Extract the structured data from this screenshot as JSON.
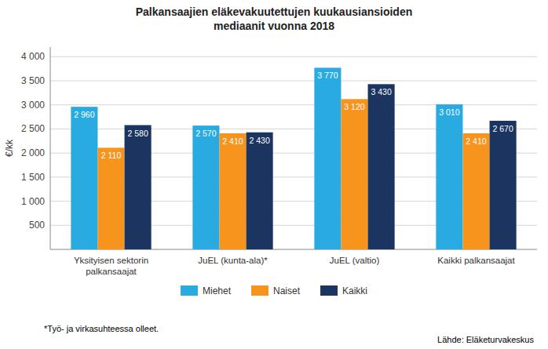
{
  "chart_data": {
    "type": "bar",
    "title": "Palkansaajien eläkevakuutettujen kuukausiansioiden\nmediaanit vuonna 2018",
    "categories": [
      "Yksityisen sektorin\npalkansaajat",
      "JuEL (kunta-ala)*",
      "JuEL (valtio)",
      "Kaikki palkansaajat"
    ],
    "series": [
      {
        "name": "Miehet",
        "color": "#29ABE2",
        "values": [
          2960,
          2570,
          3770,
          3010
        ],
        "value_labels": [
          "2 960",
          "2 570",
          "3 770",
          "3 010"
        ]
      },
      {
        "name": "Naiset",
        "color": "#F7941D",
        "values": [
          2110,
          2410,
          3120,
          2410
        ],
        "value_labels": [
          "2 110",
          "2 410",
          "3 120",
          "2 410"
        ]
      },
      {
        "name": "Kaikki",
        "color": "#1B3560",
        "values": [
          2580,
          2430,
          3430,
          2670
        ],
        "value_labels": [
          "2 580",
          "2 430",
          "3 430",
          "2 670"
        ]
      }
    ],
    "ylabel": "€/kk",
    "ylim": [
      0,
      4200
    ],
    "yticks": [
      500,
      {
        "value": 1000,
        "label": "1 000"
      },
      {
        "value": 1500,
        "label": "1 500"
      },
      {
        "value": 2000,
        "label": "2 000"
      },
      {
        "value": 2500,
        "label": "2 500"
      },
      {
        "value": 3000,
        "label": "3 000"
      },
      {
        "value": 3500,
        "label": "3 500"
      },
      {
        "value": 4000,
        "label": "4 000"
      }
    ],
    "grid": true,
    "legend": "bottom",
    "data_labels": true,
    "annotations": [
      "*Työ- ja virkasuhteessa olleet.",
      "Lähde: Eläketurvakeskus"
    ]
  }
}
